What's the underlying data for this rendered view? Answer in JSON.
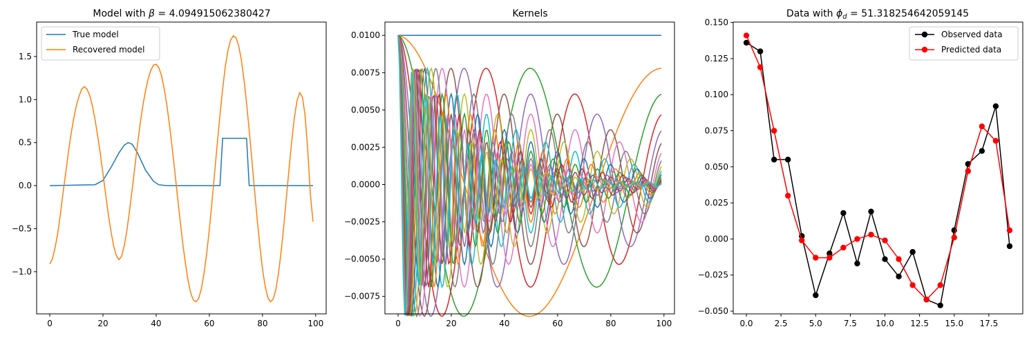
{
  "chart_data": [
    {
      "type": "line",
      "title": "Model with β = 4.094915062380427",
      "title_prefix": "Model with ",
      "title_symbol": "β",
      "title_value": " = 4.094915062380427",
      "xlim": [
        -4.95,
        103.95
      ],
      "ylim": [
        -1.49,
        1.9
      ],
      "xticks": [
        0,
        20,
        40,
        60,
        80,
        100
      ],
      "xtick_labels": [
        "0",
        "20",
        "40",
        "60",
        "80",
        "100"
      ],
      "yticks": [
        -1.0,
        -0.5,
        0.0,
        0.5,
        1.0,
        1.5
      ],
      "ytick_labels": [
        "−1.0",
        "−0.5",
        "0.0",
        "0.5",
        "1.0",
        "1.5"
      ],
      "legend_position": "top-left",
      "series": [
        {
          "name": "True model",
          "color": "#1f77b4",
          "x": [
            0,
            17,
            20,
            23,
            26,
            28,
            29.5,
            31,
            33,
            36,
            39,
            41,
            44,
            63,
            64,
            65,
            74,
            75,
            76,
            99
          ],
          "y": [
            0,
            0.01,
            0.06,
            0.21,
            0.38,
            0.47,
            0.5,
            0.48,
            0.38,
            0.18,
            0.05,
            0.01,
            0,
            0,
            0,
            0.55,
            0.55,
            0,
            0,
            0
          ]
        },
        {
          "name": "Recovered model",
          "color": "#ff7f0e",
          "x": [
            0,
            1,
            2,
            3,
            4,
            5,
            6,
            7,
            8,
            9,
            10,
            11,
            12,
            13,
            14,
            15,
            16,
            17,
            18,
            19,
            20,
            21,
            22,
            23,
            24,
            25,
            26,
            27,
            28,
            29,
            30,
            31,
            32,
            33,
            34,
            35,
            36,
            37,
            38,
            39,
            40,
            41,
            42,
            43,
            44,
            45,
            46,
            47,
            48,
            49,
            50,
            51,
            52,
            53,
            54,
            55,
            56,
            57,
            58,
            59,
            60,
            61,
            62,
            63,
            64,
            65,
            66,
            67,
            68,
            69,
            70,
            71,
            72,
            73,
            74,
            75,
            76,
            77,
            78,
            79,
            80,
            81,
            82,
            83,
            84,
            85,
            86,
            87,
            88,
            89,
            90,
            91,
            92,
            93,
            94,
            95,
            96,
            97,
            98,
            99
          ],
          "y": [
            -0.91,
            -0.85,
            -0.72,
            -0.55,
            -0.33,
            -0.08,
            0.15,
            0.39,
            0.6,
            0.78,
            0.93,
            1.04,
            1.12,
            1.15,
            1.12,
            1.05,
            0.93,
            0.77,
            0.58,
            0.37,
            0.14,
            -0.1,
            -0.33,
            -0.53,
            -0.7,
            -0.81,
            -0.86,
            -0.82,
            -0.7,
            -0.52,
            -0.29,
            -0.04,
            0.22,
            0.48,
            0.72,
            0.93,
            1.1,
            1.24,
            1.34,
            1.4,
            1.41,
            1.37,
            1.28,
            1.13,
            0.94,
            0.71,
            0.45,
            0.17,
            -0.12,
            -0.4,
            -0.67,
            -0.9,
            -1.1,
            -1.25,
            -1.33,
            -1.35,
            -1.31,
            -1.2,
            -1.02,
            -0.79,
            -0.51,
            -0.19,
            0.15,
            0.49,
            0.82,
            1.12,
            1.38,
            1.57,
            1.69,
            1.74,
            1.72,
            1.63,
            1.47,
            1.24,
            0.96,
            0.64,
            0.3,
            -0.05,
            -0.39,
            -0.7,
            -0.97,
            -1.17,
            -1.3,
            -1.35,
            -1.32,
            -1.21,
            -1.02,
            -0.77,
            -0.47,
            -0.13,
            0.2,
            0.52,
            0.79,
            0.99,
            1.08,
            1.03,
            0.82,
            0.42,
            -0.1,
            -0.42
          ]
        }
      ]
    },
    {
      "type": "line",
      "title": "Kernels",
      "xlim": [
        -4.95,
        103.95
      ],
      "ylim": [
        -0.00867,
        0.01089
      ],
      "xticks": [
        0,
        20,
        40,
        60,
        80,
        100
      ],
      "xtick_labels": [
        "0",
        "20",
        "40",
        "60",
        "80",
        "100"
      ],
      "yticks": [
        -0.0075,
        -0.005,
        -0.0025,
        0.0,
        0.0025,
        0.005,
        0.0075,
        0.01
      ],
      "ytick_labels": [
        "−0.0075",
        "−0.0050",
        "−0.0025",
        "0.0000",
        "0.0025",
        "0.0050",
        "0.0075",
        "0.0100"
      ],
      "kernel_count": 20,
      "decay": 0.25,
      "amplitude": 0.01,
      "legend_position": "none",
      "series_colors": [
        "#1f77b4",
        "#ff7f0e",
        "#2ca02c",
        "#d62728",
        "#9467bd",
        "#8c564b",
        "#e377c2",
        "#7f7f7f",
        "#bcbd22",
        "#17becf",
        "#1f77b4",
        "#ff7f0e",
        "#2ca02c",
        "#d62728",
        "#9467bd",
        "#8c564b",
        "#e377c2",
        "#7f7f7f",
        "#bcbd22",
        "#17becf"
      ]
    },
    {
      "type": "line",
      "title": "Data with ϕd = 51.318254642059145",
      "title_prefix": "Data with ",
      "title_symbol": "ϕ",
      "title_subscript": "d",
      "title_value": " = 51.318254642059145",
      "xlim": [
        -0.95,
        19.95
      ],
      "ylim": [
        -0.0519,
        0.1503
      ],
      "xticks": [
        0,
        2.5,
        5,
        7.5,
        10,
        12.5,
        15,
        17.5
      ],
      "xtick_labels": [
        "0.0",
        "2.5",
        "5.0",
        "7.5",
        "10.0",
        "12.5",
        "15.0",
        "17.5"
      ],
      "yticks": [
        -0.05,
        -0.025,
        0.0,
        0.025,
        0.05,
        0.075,
        0.1,
        0.125,
        0.15
      ],
      "ytick_labels": [
        "−0.050",
        "−0.025",
        "0.000",
        "0.025",
        "0.050",
        "0.075",
        "0.100",
        "0.125",
        "0.150"
      ],
      "legend_position": "top-right",
      "series": [
        {
          "name": "Observed data",
          "color": "#000000",
          "x": [
            0,
            1,
            2,
            3,
            4,
            5,
            6,
            7,
            8,
            9,
            10,
            11,
            12,
            13,
            14,
            15,
            16,
            17,
            18,
            19
          ],
          "y": [
            0.136,
            0.13,
            0.055,
            0.055,
            0.002,
            -0.039,
            -0.01,
            0.018,
            -0.017,
            0.019,
            -0.014,
            -0.026,
            -0.009,
            -0.042,
            -0.046,
            0.006,
            0.052,
            0.061,
            0.092,
            -0.005
          ]
        },
        {
          "name": "Predicted data",
          "color": "#ff0000",
          "x": [
            0,
            1,
            2,
            3,
            4,
            5,
            6,
            7,
            8,
            9,
            10,
            11,
            12,
            13,
            14,
            15,
            16,
            17,
            18,
            19
          ],
          "y": [
            0.141,
            0.119,
            0.075,
            0.03,
            -0.001,
            -0.013,
            -0.013,
            -0.006,
            0.0,
            0.003,
            -0.001,
            -0.014,
            -0.032,
            -0.042,
            -0.032,
            0.001,
            0.047,
            0.078,
            0.068,
            0.006
          ]
        }
      ]
    }
  ]
}
